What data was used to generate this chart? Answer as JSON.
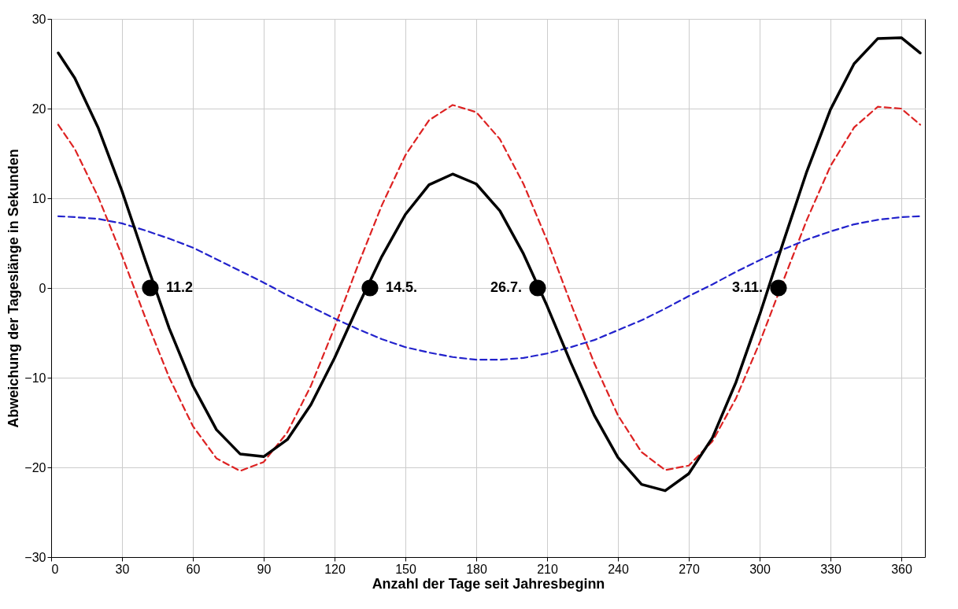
{
  "chart_data": {
    "type": "line",
    "xlabel": "Anzahl der Tage seit Jahresbeginn",
    "ylabel": "Abweichung  der Tageslänge in Sekunden",
    "x": [
      3,
      10,
      20,
      30,
      40,
      50,
      60,
      70,
      80,
      90,
      100,
      110,
      120,
      130,
      140,
      150,
      160,
      170,
      180,
      190,
      200,
      210,
      220,
      230,
      240,
      250,
      260,
      270,
      280,
      290,
      300,
      310,
      320,
      330,
      340,
      350,
      360,
      368
    ],
    "series": [
      {
        "color": "#dd2222",
        "line_style": "dashed",
        "values": [
          18.2,
          15.5,
          10.1,
          3.6,
          -3.4,
          -10.0,
          -15.4,
          -19.0,
          -20.4,
          -19.4,
          -16.1,
          -10.9,
          -4.4,
          2.6,
          9.2,
          14.8,
          18.7,
          20.4,
          19.6,
          16.6,
          11.6,
          5.3,
          -1.7,
          -8.4,
          -14.2,
          -18.3,
          -20.3,
          -19.8,
          -17.1,
          -12.3,
          -6.1,
          0.8,
          7.6,
          13.6,
          17.9,
          20.2,
          20.0,
          18.2
        ]
      },
      {
        "color": "#2222cc",
        "line_style": "dashed",
        "values": [
          8.0,
          7.9,
          7.7,
          7.2,
          6.4,
          5.5,
          4.5,
          3.2,
          1.9,
          0.6,
          -0.8,
          -2.1,
          -3.4,
          -4.6,
          -5.7,
          -6.6,
          -7.2,
          -7.7,
          -8.0,
          -8.0,
          -7.8,
          -7.3,
          -6.6,
          -5.8,
          -4.7,
          -3.6,
          -2.3,
          -0.9,
          0.4,
          1.8,
          3.1,
          4.3,
          5.4,
          6.3,
          7.1,
          7.6,
          7.9,
          8.0
        ]
      },
      {
        "color": "#000000",
        "line_style": "solid",
        "values": [
          26.2,
          23.4,
          17.8,
          10.8,
          3.0,
          -4.5,
          -10.9,
          -15.8,
          -18.5,
          -18.8,
          -16.9,
          -13.0,
          -7.8,
          -2.0,
          3.5,
          8.2,
          11.5,
          12.7,
          11.6,
          8.6,
          3.8,
          -2.0,
          -8.3,
          -14.2,
          -18.9,
          -21.9,
          -22.6,
          -20.7,
          -16.7,
          -10.5,
          -3.0,
          5.1,
          13.0,
          19.9,
          25.0,
          27.8,
          27.9,
          26.2
        ]
      },
      {
        "type": "scatter",
        "marker": "circle",
        "color": "#000000",
        "x": [
          42,
          135,
          206,
          308
        ],
        "values": [
          0,
          0,
          0,
          0
        ]
      }
    ],
    "annotations": [
      {
        "text": "11.2",
        "x": 42,
        "y": 0
      },
      {
        "text": "14.5.",
        "x": 135,
        "y": 0
      },
      {
        "text": "26.7.",
        "x": 206,
        "y": 0
      },
      {
        "text": "3.11.",
        "x": 308,
        "y": 0
      }
    ],
    "xlim": [
      0,
      370
    ],
    "xticks": [
      0,
      30,
      60,
      90,
      120,
      150,
      180,
      210,
      240,
      270,
      300,
      330,
      360
    ],
    "ylim": [
      -30,
      30
    ],
    "yticks": [
      -30,
      -20,
      -10,
      0,
      10,
      20,
      30
    ],
    "grid": true,
    "marker": "none"
  }
}
